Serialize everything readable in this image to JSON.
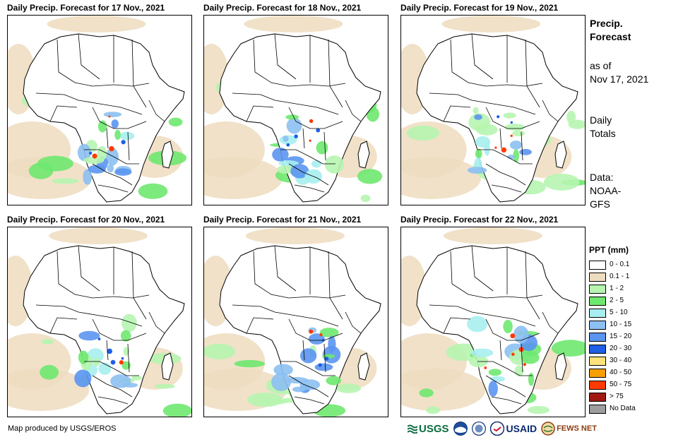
{
  "panels": [
    {
      "title": "Daily Precip. Forecast for 17 Nov., 2021"
    },
    {
      "title": "Daily Precip. Forecast for 18 Nov., 2021"
    },
    {
      "title": "Daily Precip. Forecast for 19 Nov., 2021"
    },
    {
      "title": "Daily Precip. Forecast for 20 Nov., 2021"
    },
    {
      "title": "Daily Precip. Forecast for 21 Nov., 2021"
    },
    {
      "title": "Daily Precip. Forecast for 22 Nov., 2021"
    }
  ],
  "side": {
    "title_line1": "Precip.",
    "title_line2": "Forecast",
    "asof_line1": "as of",
    "asof_line2": "Nov 17, 2021",
    "totals_line1": "Daily",
    "totals_line2": "Totals",
    "data_line1": "Data:",
    "data_line2": "NOAA-",
    "data_line3": "GFS"
  },
  "legend": {
    "title": "PPT (mm)",
    "items": [
      {
        "label": "0 - 0.1",
        "color": "#ffffff"
      },
      {
        "label": "0.1 - 1",
        "color": "#eedcbf"
      },
      {
        "label": "1 - 2",
        "color": "#b6f5b0"
      },
      {
        "label": "2 - 5",
        "color": "#6ee86f"
      },
      {
        "label": "5 - 10",
        "color": "#a8eef0"
      },
      {
        "label": "10 - 15",
        "color": "#8cc0f2"
      },
      {
        "label": "15 - 20",
        "color": "#5a95ef"
      },
      {
        "label": "20 - 30",
        "color": "#1f5fe6"
      },
      {
        "label": "30 - 40",
        "color": "#ffe27a"
      },
      {
        "label": "40 - 50",
        "color": "#f5a000"
      },
      {
        "label": "50 - 75",
        "color": "#ff3a00"
      },
      {
        "label": "> 75",
        "color": "#a01a12"
      },
      {
        "label": "No Data",
        "color": "#9e9e9e"
      }
    ]
  },
  "footer": {
    "credit": "Map produced by USGS/EROS",
    "logo_usgs": "USGS",
    "logo_usaid": "USAID",
    "logo_fews": "FEWS NET"
  }
}
